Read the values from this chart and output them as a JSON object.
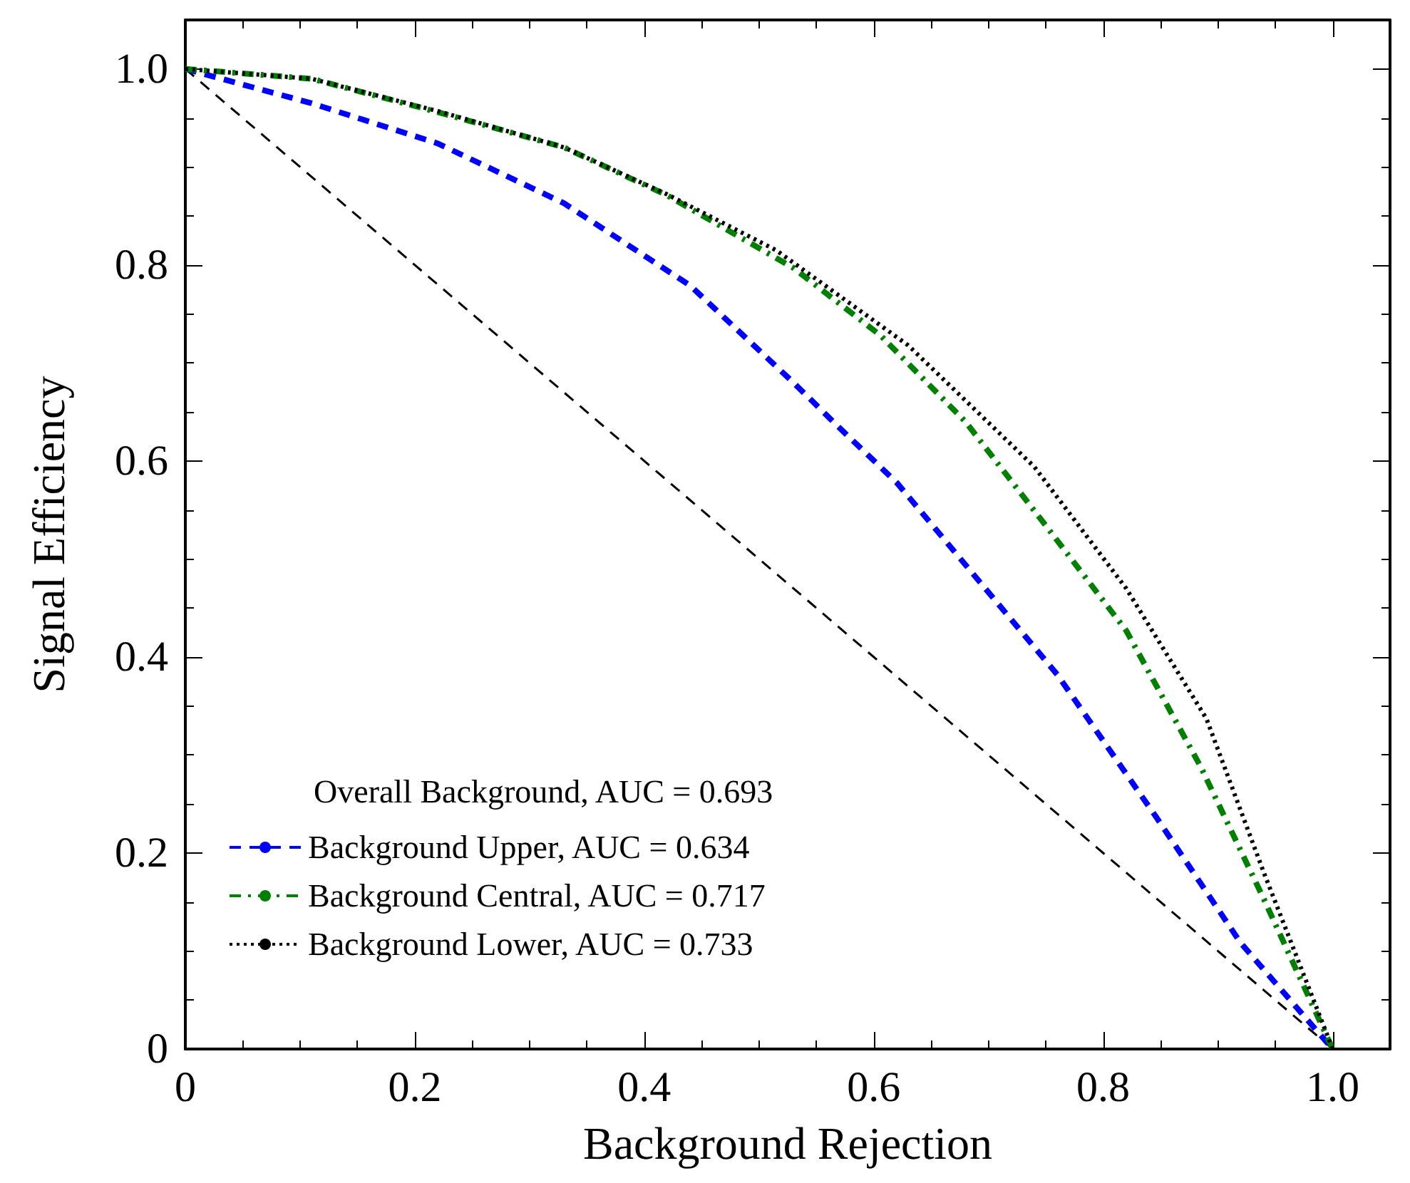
{
  "chart_data": {
    "type": "line",
    "xlabel": "Background Rejection",
    "ylabel": "Signal Efficiency",
    "xlim": [
      0,
      1.05
    ],
    "ylim": [
      0,
      1.05
    ],
    "xticks": [
      0,
      0.2,
      0.4,
      0.6,
      0.8,
      {
        "value": 1,
        "label": "1.0"
      }
    ],
    "yticks": [
      0,
      0.2,
      0.4,
      0.6,
      0.8,
      {
        "value": 1,
        "label": "1.0"
      }
    ],
    "grid": false,
    "legend": "bottom left",
    "marker": "none",
    "annotations": [
      "Overall Background, AUC = 0.693"
    ],
    "series": [
      {
        "color": "#000000",
        "line_style": "dashed",
        "x": [
          0,
          1
        ],
        "values": [
          1,
          0
        ]
      },
      {
        "name": "Background Upper, AUC = 0.634",
        "color": "#0000ff",
        "line_style": "dashed",
        "x": [
          0,
          0.11,
          0.22,
          0.33,
          0.44,
          0.53,
          0.57,
          0.62,
          0.72,
          0.76,
          0.846,
          0.92,
          1
        ],
        "values": [
          1,
          0.965,
          0.924,
          0.863,
          0.779,
          0.68,
          0.634,
          0.578,
          0.438,
          0.382,
          0.237,
          0.108,
          0
        ]
      },
      {
        "name": "Background Central, AUC = 0.717",
        "color": "#008000",
        "line_style": "dashdot",
        "x": [
          0,
          0.11,
          0.22,
          0.33,
          0.42,
          0.53,
          0.606,
          0.68,
          0.75,
          0.82,
          0.885,
          0.94,
          1
        ],
        "values": [
          1,
          0.99,
          0.956,
          0.92,
          0.871,
          0.797,
          0.728,
          0.64,
          0.534,
          0.427,
          0.288,
          0.153,
          0
        ]
      },
      {
        "name": "Background Lower, AUC = 0.733",
        "color": "#000000",
        "line_style": "dotted",
        "x": [
          0,
          0.11,
          0.22,
          0.33,
          0.42,
          0.515,
          0.63,
          0.74,
          0.82,
          0.89,
          0.94,
          1
        ],
        "values": [
          1,
          0.99,
          0.957,
          0.92,
          0.872,
          0.815,
          0.718,
          0.594,
          0.47,
          0.337,
          0.18,
          0
        ]
      }
    ]
  }
}
